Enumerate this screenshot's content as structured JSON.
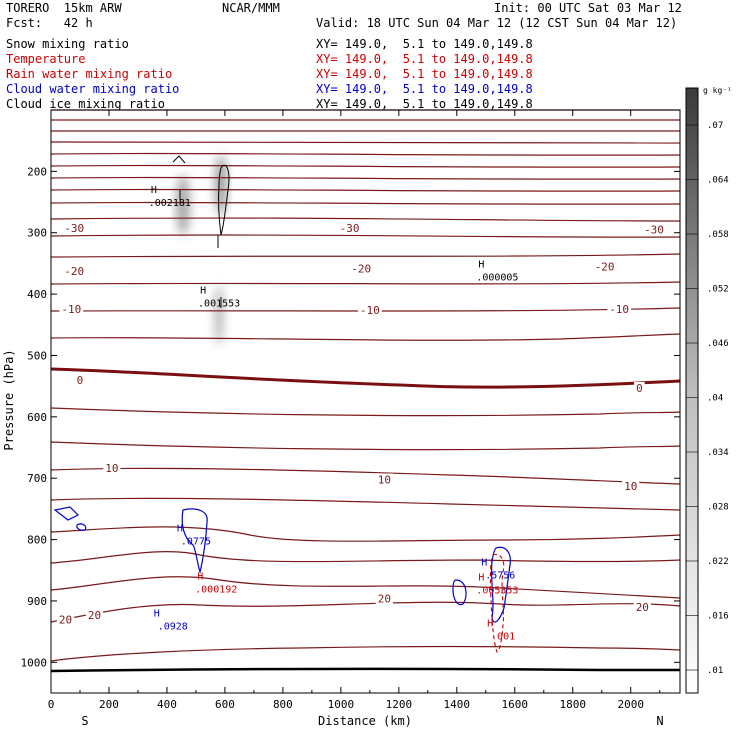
{
  "header": {
    "model": "TORERO  15km ARW",
    "org": "NCAR/MMM",
    "init": "Init: 00 UTC Sat 03 Mar 12",
    "fcst": "Fcst:   42 h",
    "valid": "Valid: 18 UTC Sun 04 Mar 12 (12 CST Sun 04 Mar 12)",
    "fields": [
      {
        "name": "Snow mixing ratio",
        "color": "#000000",
        "xy": "XY= 149.0,  5.1 to 149.0,149.8"
      },
      {
        "name": "Temperature",
        "color": "#cc0000",
        "xy": "XY= 149.0,  5.1 to 149.0,149.8"
      },
      {
        "name": "Rain water mixing ratio",
        "color": "#cc0000",
        "xy": "XY= 149.0,  5.1 to 149.0,149.8"
      },
      {
        "name": "Cloud water mixing ratio",
        "color": "#0000cc",
        "xy": "XY= 149.0,  5.1 to 149.0,149.8"
      },
      {
        "name": "Cloud ice mixing ratio",
        "color": "#000000",
        "xy": "XY= 149.0,  5.1 to 149.0,149.8"
      }
    ]
  },
  "chart_data": {
    "type": "contour",
    "xlabel": "Distance (km)",
    "ylabel": "Pressure (hPa)",
    "xlim": [
      0,
      2170
    ],
    "ylim": [
      1050,
      100
    ],
    "x_ticks": [
      0,
      200,
      400,
      600,
      800,
      1000,
      1200,
      1400,
      1600,
      1800,
      2000
    ],
    "y_ticks": [
      200,
      300,
      400,
      500,
      600,
      700,
      800,
      900,
      1000
    ],
    "x_end_labels": {
      "left": "S",
      "right": "N"
    },
    "colorbar": {
      "unit": "g kg⁻¹",
      "ticks": [
        ".01",
        ".016",
        ".022",
        ".028",
        ".034",
        ".04",
        ".046",
        ".052",
        ".058",
        ".064",
        ".07"
      ]
    },
    "temperature_contour_labels": [
      {
        "value": "-30",
        "x": 80,
        "p": 292
      },
      {
        "value": "-30",
        "x": 1030,
        "p": 292
      },
      {
        "value": "-30",
        "x": 2080,
        "p": 295
      },
      {
        "value": "-20",
        "x": 80,
        "p": 362
      },
      {
        "value": "-20",
        "x": 1070,
        "p": 358
      },
      {
        "value": "-20",
        "x": 1910,
        "p": 355
      },
      {
        "value": "-10",
        "x": 70,
        "p": 424
      },
      {
        "value": "-10",
        "x": 1100,
        "p": 426
      },
      {
        "value": "-10",
        "x": 1960,
        "p": 424
      },
      {
        "value": "0",
        "x": 100,
        "p": 540
      },
      {
        "value": "0",
        "x": 2030,
        "p": 553
      },
      {
        "value": "10",
        "x": 210,
        "p": 683
      },
      {
        "value": "10",
        "x": 1150,
        "p": 702
      },
      {
        "value": "10",
        "x": 2000,
        "p": 713
      },
      {
        "value": "20",
        "x": 50,
        "p": 930
      },
      {
        "value": "20",
        "x": 150,
        "p": 923
      },
      {
        "value": "20",
        "x": 1150,
        "p": 896
      },
      {
        "value": "20",
        "x": 2040,
        "p": 910
      }
    ],
    "maxima": [
      {
        "field": "Cloud ice mixing ratio",
        "value": ".002181",
        "x": 410,
        "p": 248
      },
      {
        "field": "Cloud ice mixing ratio",
        "value": ".001553",
        "x": 580,
        "p": 412
      },
      {
        "field": "Cloud ice mixing ratio",
        "value": ".000005",
        "x": 1540,
        "p": 370
      },
      {
        "field": "Cloud water mixing ratio",
        "value": ".0775",
        "x": 500,
        "p": 800
      },
      {
        "field": "Cloud water mixing ratio",
        "value": ".0928",
        "x": 420,
        "p": 938
      },
      {
        "field": "Cloud water mixing ratio",
        "value": ".5756",
        "x": 1550,
        "p": 855
      },
      {
        "field": "Rain water mixing ratio",
        "value": ".000192",
        "x": 570,
        "p": 878
      },
      {
        "field": "Rain water mixing ratio",
        "value": ".005353",
        "x": 1540,
        "p": 880
      },
      {
        "field": "Rain water mixing ratio",
        "value": "001",
        "x": 1570,
        "p": 955
      }
    ]
  }
}
